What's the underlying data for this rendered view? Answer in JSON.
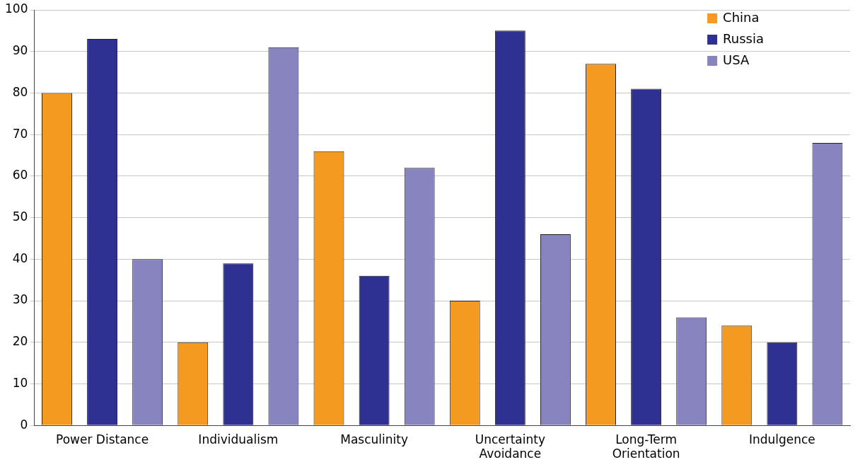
{
  "chart_data": {
    "type": "bar",
    "categories": [
      "Power Distance",
      "Individualism",
      "Masculinity",
      "Uncertainty Avoidance",
      "Long-Term Orientation",
      "Indulgence"
    ],
    "series": [
      {
        "name": "China",
        "color": "#f49a20",
        "values": [
          80,
          20,
          66,
          30,
          87,
          24
        ]
      },
      {
        "name": "Russia",
        "color": "#2e3192",
        "values": [
          93,
          39,
          36,
          95,
          81,
          20
        ]
      },
      {
        "name": "USA",
        "color": "#8784bf",
        "values": [
          40,
          91,
          62,
          46,
          26,
          68
        ]
      }
    ],
    "ylim": [
      0,
      100
    ],
    "yticks": [
      0,
      10,
      20,
      30,
      40,
      50,
      60,
      70,
      80,
      90,
      100
    ],
    "grid": "y",
    "legend": "top right"
  }
}
